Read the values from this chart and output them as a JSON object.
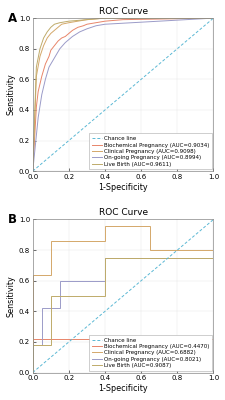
{
  "title": "ROC Curve",
  "xlabel": "1-Specificity",
  "ylabel": "Sensitivity",
  "panel_A": {
    "label": "A",
    "curves": [
      {
        "name": "Biochemical Pregnancy (AUC=0.9034)",
        "color": "#e8856a",
        "points_x": [
          0.0,
          0.02,
          0.03,
          0.05,
          0.07,
          0.09,
          0.1,
          0.12,
          0.14,
          0.16,
          0.18,
          0.2,
          0.22,
          0.25,
          0.28,
          0.3,
          0.35,
          0.4,
          0.5,
          1.0
        ],
        "points_y": [
          0.0,
          0.42,
          0.52,
          0.62,
          0.7,
          0.75,
          0.79,
          0.82,
          0.85,
          0.87,
          0.88,
          0.9,
          0.92,
          0.94,
          0.95,
          0.96,
          0.97,
          0.98,
          0.99,
          1.0
        ]
      },
      {
        "name": "Clinical Pregnancy (AUC=0.9098)",
        "color": "#d4a86a",
        "points_x": [
          0.0,
          0.02,
          0.04,
          0.06,
          0.08,
          0.1,
          0.13,
          0.16,
          0.2,
          0.25,
          0.3,
          0.4,
          1.0
        ],
        "points_y": [
          0.0,
          0.62,
          0.75,
          0.82,
          0.87,
          0.9,
          0.93,
          0.96,
          0.97,
          0.98,
          0.99,
          1.0,
          1.0
        ]
      },
      {
        "name": "On-going Pregnancy (AUC=0.8994)",
        "color": "#9b9bc8",
        "points_x": [
          0.0,
          0.03,
          0.05,
          0.07,
          0.09,
          0.12,
          0.15,
          0.18,
          0.22,
          0.26,
          0.3,
          0.35,
          0.4,
          1.0
        ],
        "points_y": [
          0.0,
          0.35,
          0.5,
          0.6,
          0.68,
          0.74,
          0.8,
          0.84,
          0.88,
          0.91,
          0.93,
          0.95,
          0.96,
          1.0
        ]
      },
      {
        "name": "Live Birth (AUC=0.9611)",
        "color": "#bfab6a",
        "points_x": [
          0.0,
          0.02,
          0.04,
          0.06,
          0.08,
          0.1,
          0.12,
          0.15,
          0.2,
          0.3,
          0.4,
          1.0
        ],
        "points_y": [
          0.0,
          0.68,
          0.8,
          0.87,
          0.91,
          0.94,
          0.96,
          0.97,
          0.98,
          0.99,
          1.0,
          1.0
        ]
      }
    ]
  },
  "panel_B": {
    "label": "B",
    "curves": [
      {
        "name": "Biochemical Pregnancy (AUC=0.4470)",
        "color": "#e8856a",
        "points_x": [
          0.0,
          0.0,
          0.05,
          0.05,
          1.0
        ],
        "points_y": [
          0.0,
          0.22,
          0.22,
          0.22,
          0.22
        ]
      },
      {
        "name": "Clinical Pregnancy (AUC=0.6882)",
        "color": "#d4a86a",
        "points_x": [
          0.0,
          0.0,
          0.1,
          0.1,
          0.4,
          0.4,
          0.65,
          0.65,
          1.0
        ],
        "points_y": [
          0.0,
          0.64,
          0.64,
          0.86,
          0.86,
          0.96,
          0.96,
          0.8,
          0.8
        ]
      },
      {
        "name": "On-going Pregnancy (AUC=0.8021)",
        "color": "#9b9bc8",
        "points_x": [
          0.0,
          0.0,
          0.05,
          0.05,
          0.15,
          0.15,
          0.4,
          0.4,
          1.0
        ],
        "points_y": [
          0.0,
          0.18,
          0.18,
          0.42,
          0.42,
          0.6,
          0.6,
          0.75,
          0.75
        ]
      },
      {
        "name": "Live Birth (AUC=0.9087)",
        "color": "#bfab6a",
        "points_x": [
          0.0,
          0.0,
          0.1,
          0.1,
          0.4,
          0.4,
          0.65,
          0.65,
          1.0
        ],
        "points_y": [
          0.0,
          0.18,
          0.18,
          0.5,
          0.5,
          0.75,
          0.75,
          0.75,
          0.75
        ]
      }
    ]
  },
  "chance_line_color": "#5bb8d4",
  "background_color": "#ffffff",
  "tick_fontsize": 5.0,
  "label_fontsize": 5.8,
  "title_fontsize": 6.5,
  "legend_fontsize": 4.0,
  "line_width": 0.7,
  "panel_label_fontsize": 8.5
}
